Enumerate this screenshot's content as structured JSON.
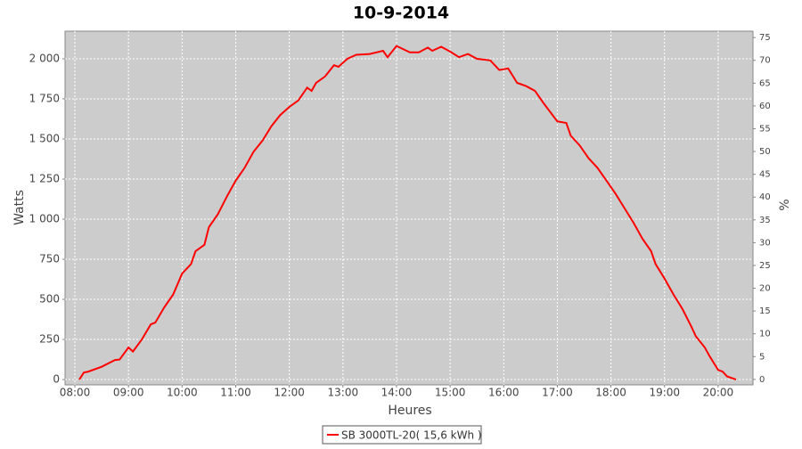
{
  "chart_data": {
    "type": "line",
    "title": "10-9-2014",
    "x_label": "Heures",
    "y_label": "Watts",
    "y2_label": "%",
    "x": [
      "08:05",
      "08:10",
      "08:15",
      "08:30",
      "08:45",
      "08:50",
      "09:00",
      "09:05",
      "09:15",
      "09:25",
      "09:30",
      "09:40",
      "09:50",
      "10:00",
      "10:10",
      "10:15",
      "10:25",
      "10:30",
      "10:40",
      "10:50",
      "11:00",
      "11:10",
      "11:20",
      "11:30",
      "11:40",
      "11:50",
      "12:00",
      "12:10",
      "12:20",
      "12:25",
      "12:30",
      "12:40",
      "12:50",
      "12:55",
      "13:05",
      "13:15",
      "13:30",
      "13:45",
      "13:50",
      "14:00",
      "14:15",
      "14:25",
      "14:35",
      "14:40",
      "14:50",
      "15:00",
      "15:10",
      "15:20",
      "15:30",
      "15:45",
      "15:55",
      "16:05",
      "16:15",
      "16:25",
      "16:35",
      "16:45",
      "17:00",
      "17:10",
      "17:15",
      "17:25",
      "17:35",
      "17:45",
      "17:55",
      "18:05",
      "18:15",
      "18:25",
      "18:35",
      "18:45",
      "18:50",
      "19:00",
      "19:10",
      "19:20",
      "19:30",
      "19:35",
      "19:45",
      "19:50",
      "20:00",
      "20:05",
      "20:10",
      "20:20"
    ],
    "series": [
      {
        "name": "SB 3000TL-20( 15,6 kWh )",
        "color": "#ff0000",
        "values": [
          0,
          44,
          50,
          80,
          122,
          125,
          200,
          175,
          250,
          344,
          355,
          450,
          530,
          660,
          720,
          800,
          840,
          950,
          1030,
          1140,
          1240,
          1320,
          1420,
          1490,
          1580,
          1650,
          1700,
          1740,
          1820,
          1800,
          1850,
          1890,
          1960,
          1950,
          2000,
          2025,
          2030,
          2050,
          2010,
          2080,
          2040,
          2040,
          2070,
          2050,
          2075,
          2045,
          2010,
          2030,
          2000,
          1990,
          1930,
          1940,
          1850,
          1830,
          1800,
          1720,
          1610,
          1600,
          1520,
          1460,
          1380,
          1320,
          1240,
          1160,
          1070,
          980,
          880,
          800,
          720,
          630,
          530,
          440,
          330,
          270,
          200,
          150,
          60,
          50,
          20,
          0
        ]
      }
    ],
    "xlim": [
      "07:49",
      "20:39"
    ],
    "xticks": [
      "08:00",
      "09:00",
      "10:00",
      "11:00",
      "12:00",
      "13:00",
      "14:00",
      "15:00",
      "16:00",
      "17:00",
      "18:00",
      "19:00",
      "20:00"
    ],
    "ylim": [
      -33,
      2172
    ],
    "yticks": [
      0,
      250,
      500,
      750,
      {
        "value": 1000,
        "label": "1 000"
      },
      {
        "value": 1250,
        "label": "1 250"
      },
      {
        "value": 1500,
        "label": "1 500"
      },
      {
        "value": 1750,
        "label": "1 750"
      },
      {
        "value": 2000,
        "label": "2 000"
      }
    ],
    "y2lim": [
      -1.2,
      76.4
    ],
    "y2ticks": [
      0,
      5,
      10,
      15,
      20,
      25,
      30,
      35,
      40,
      45,
      50,
      55,
      60,
      65,
      70,
      75
    ],
    "grid": true,
    "legend": "bottom"
  }
}
